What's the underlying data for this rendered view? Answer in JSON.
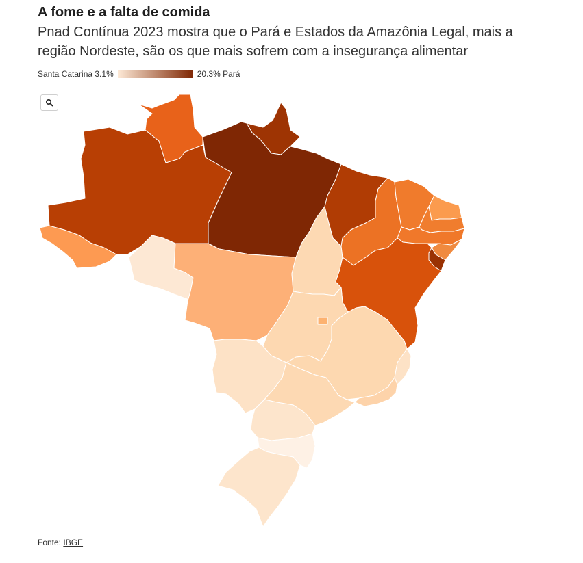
{
  "header": {
    "title": "A fome e a falta de comida",
    "subtitle": "Pnad Contínua 2023 mostra que o Pará e Estados da Amazônia Legal, mais a região Nordeste, são os que mais sofrem com a insegurança alimentar"
  },
  "legend": {
    "min_label": "Santa Catarina 3.1%",
    "max_label": "20.3% Pará",
    "min_value": 3.1,
    "max_value": 20.3,
    "color_low": "#fde9d6",
    "color_high": "#7f2704"
  },
  "controls": {
    "search_icon": "search-icon"
  },
  "map": {
    "regions": [
      {
        "id": "AM",
        "fill": "#b83f04"
      },
      {
        "id": "RR",
        "fill": "#e8621a"
      },
      {
        "id": "AP",
        "fill": "#9e3403"
      },
      {
        "id": "PA",
        "fill": "#7f2704"
      },
      {
        "id": "AC",
        "fill": "#fd9a52"
      },
      {
        "id": "RO",
        "fill": "#fde8d4"
      },
      {
        "id": "MT",
        "fill": "#fdb077"
      },
      {
        "id": "TO",
        "fill": "#fdd9b3"
      },
      {
        "id": "MA",
        "fill": "#b03c04"
      },
      {
        "id": "PI",
        "fill": "#ec7224"
      },
      {
        "id": "CE",
        "fill": "#f07b2c"
      },
      {
        "id": "RN",
        "fill": "#fb9b4e"
      },
      {
        "id": "PB",
        "fill": "#f07d2e"
      },
      {
        "id": "PE",
        "fill": "#f0782a"
      },
      {
        "id": "AL",
        "fill": "#f08a3f"
      },
      {
        "id": "SE",
        "fill": "#9a3203"
      },
      {
        "id": "BA",
        "fill": "#d8520b"
      },
      {
        "id": "GO",
        "fill": "#fdd8b1"
      },
      {
        "id": "DF",
        "fill": "#fdb270"
      },
      {
        "id": "MG",
        "fill": "#fdd8b0"
      },
      {
        "id": "ES",
        "fill": "#fde2c6"
      },
      {
        "id": "MS",
        "fill": "#fde2c6"
      },
      {
        "id": "SP",
        "fill": "#fdd9b3"
      },
      {
        "id": "RJ",
        "fill": "#fdd3aa"
      },
      {
        "id": "PR",
        "fill": "#fde5cc"
      },
      {
        "id": "SC",
        "fill": "#fef1e5"
      },
      {
        "id": "RS",
        "fill": "#fde5cc"
      }
    ]
  },
  "footer": {
    "source_prefix": "Fonte: ",
    "source_link": "IBGE"
  }
}
